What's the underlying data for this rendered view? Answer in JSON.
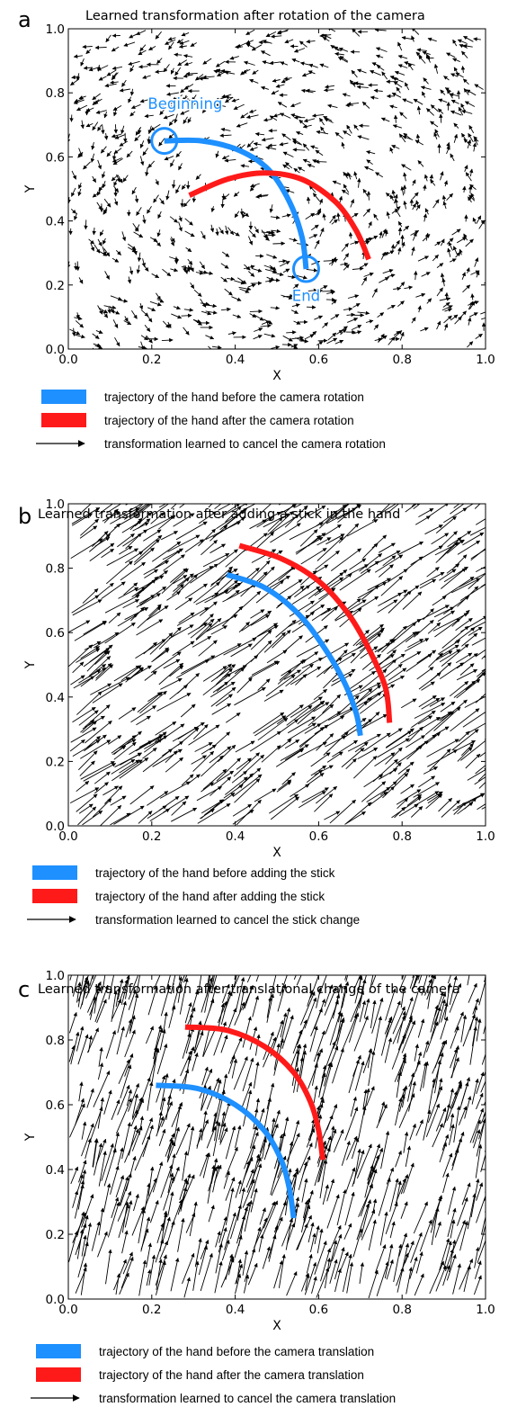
{
  "chart_data": [
    {
      "panel": "a",
      "type": "quiver",
      "title": "Learned transformation after rotation of the camera",
      "xlabel": "X",
      "ylabel": "Y",
      "xlim": [
        0,
        1
      ],
      "ylim": [
        0,
        1
      ],
      "xticks": [
        "0.0",
        "0.2",
        "0.4",
        "0.6",
        "0.8",
        "1.0"
      ],
      "yticks": [
        "0.0",
        "0.2",
        "0.4",
        "0.6",
        "0.8",
        "1.0"
      ],
      "vector_field": "rotational swirl of short arrows around the trajectory",
      "series": [
        {
          "color": "#1e90ff",
          "x": [
            0.23,
            0.32,
            0.41,
            0.48,
            0.53,
            0.56,
            0.57
          ],
          "y": [
            0.65,
            0.65,
            0.62,
            0.56,
            0.46,
            0.35,
            0.25
          ]
        },
        {
          "color": "#ff1a1a",
          "x": [
            0.29,
            0.38,
            0.47,
            0.56,
            0.64,
            0.69,
            0.72
          ],
          "y": [
            0.48,
            0.53,
            0.55,
            0.53,
            0.46,
            0.37,
            0.28
          ]
        }
      ],
      "annotations": [
        {
          "text": "Beginning",
          "x": 0.28,
          "y": 0.75
        },
        {
          "text": "End",
          "x": 0.57,
          "y": 0.15
        }
      ],
      "markers": [
        {
          "x": 0.23,
          "y": 0.65,
          "color": "#1e90ff"
        },
        {
          "x": 0.57,
          "y": 0.25,
          "color": "#1e90ff"
        }
      ],
      "legend": [
        {
          "kind": "bar",
          "color": "#1e90ff",
          "label": "trajectory of the hand before the camera rotation"
        },
        {
          "kind": "bar",
          "color": "#ff1a1a",
          "label": "trajectory of the hand after    the camera rotation"
        },
        {
          "kind": "arrow",
          "color": "#000000",
          "label": "transformation learned to cancel the camera rotation"
        }
      ]
    },
    {
      "panel": "b",
      "type": "quiver",
      "title": "Learned transformation after  adding a stick in the hand",
      "xlabel": "X",
      "ylabel": "Y",
      "xlim": [
        0,
        1
      ],
      "ylim": [
        0,
        1
      ],
      "xticks": [
        "0.0",
        "0.2",
        "0.4",
        "0.6",
        "0.8",
        "1.0"
      ],
      "yticks": [
        "0.0",
        "0.2",
        "0.4",
        "0.6",
        "0.8",
        "1.0"
      ],
      "vector_field": "long arrows pointing up and to the right",
      "series": [
        {
          "color": "#1e90ff",
          "x": [
            0.38,
            0.47,
            0.55,
            0.61,
            0.66,
            0.69,
            0.7
          ],
          "y": [
            0.78,
            0.74,
            0.66,
            0.56,
            0.45,
            0.35,
            0.28
          ]
        },
        {
          "color": "#ff1a1a",
          "x": [
            0.41,
            0.51,
            0.6,
            0.67,
            0.72,
            0.76,
            0.77
          ],
          "y": [
            0.87,
            0.83,
            0.76,
            0.66,
            0.55,
            0.43,
            0.32
          ]
        }
      ],
      "legend": [
        {
          "kind": "bar",
          "color": "#1e90ff",
          "label": "trajectory of the hand before adding the stick"
        },
        {
          "kind": "bar",
          "color": "#ff1a1a",
          "label": "trajectory of the hand after    adding the stick"
        },
        {
          "kind": "arrow",
          "color": "#000000",
          "label": "transformation learned to cancel the stick change"
        }
      ]
    },
    {
      "panel": "c",
      "type": "quiver",
      "title": "Learned transformation after translational change of the camera",
      "xlabel": "X",
      "ylabel": "Y",
      "xlim": [
        0,
        1
      ],
      "ylim": [
        0,
        1
      ],
      "xticks": [
        "0.0",
        "0.2",
        "0.4",
        "0.6",
        "0.8",
        "1.0"
      ],
      "yticks": [
        "0.0",
        "0.2",
        "0.4",
        "0.6",
        "0.8",
        "1.0"
      ],
      "vector_field": "long arrows pointing steeply upward",
      "series": [
        {
          "color": "#1e90ff",
          "x": [
            0.21,
            0.31,
            0.4,
            0.47,
            0.51,
            0.53,
            0.54
          ],
          "y": [
            0.66,
            0.65,
            0.6,
            0.52,
            0.43,
            0.34,
            0.25
          ]
        },
        {
          "color": "#ff1a1a",
          "x": [
            0.28,
            0.38,
            0.47,
            0.54,
            0.58,
            0.6,
            0.61
          ],
          "y": [
            0.84,
            0.83,
            0.78,
            0.7,
            0.61,
            0.52,
            0.43
          ]
        }
      ],
      "legend": [
        {
          "kind": "bar",
          "color": "#1e90ff",
          "label": "trajectory of the hand before the camera translation"
        },
        {
          "kind": "bar",
          "color": "#ff1a1a",
          "label": "trajectory of the hand after    the camera translation"
        },
        {
          "kind": "arrow",
          "color": "#000000",
          "label": "transformation learned to cancel the camera translation"
        }
      ]
    }
  ]
}
